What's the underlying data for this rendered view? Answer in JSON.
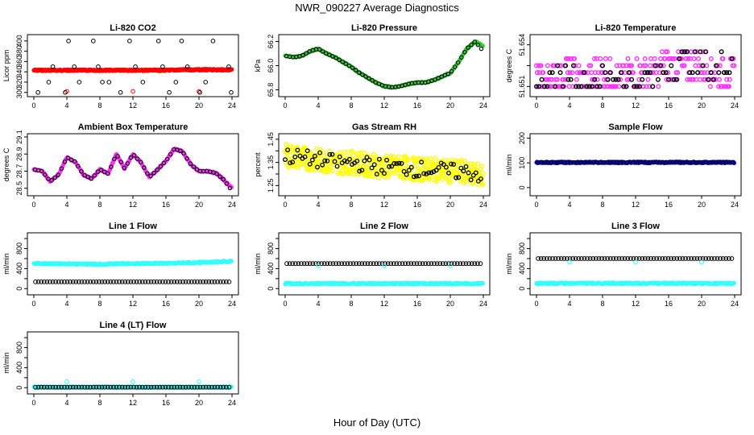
{
  "page": {
    "title": "NWR_090227  Average Diagnostics",
    "xlabel": "Hour of Day (UTC)"
  },
  "chart_data": [
    {
      "type": "scatter",
      "title": "Li-820 CO2",
      "ylabel": "Licor ppm",
      "xlim": [
        0,
        24
      ],
      "ylim": [
        298,
        406
      ],
      "xticks": [
        0,
        4,
        8,
        12,
        16,
        20,
        24
      ],
      "yticks": [
        300,
        320,
        340,
        360,
        380,
        400
      ],
      "series": [
        {
          "color": "#ff0000",
          "kind": "dense-band",
          "x": [
            0,
            2,
            4,
            6,
            8,
            10,
            12,
            14,
            16,
            18,
            20,
            22,
            24
          ],
          "values": [
            343,
            343,
            343,
            343,
            343,
            343,
            343,
            343,
            343,
            344,
            344,
            344,
            344
          ]
        },
        {
          "color": "#ff0000",
          "kind": "point",
          "x": [
            4,
            12,
            20
          ],
          "values": [
            302,
            302,
            302
          ]
        },
        {
          "color": "#000000",
          "kind": "sparse",
          "x": [
            0.5,
            1.8,
            2.3,
            3.8,
            4.2,
            4.9,
            5.5,
            7.2,
            7.8,
            8.3,
            9.1,
            10.5,
            11.6,
            12.3,
            13.2,
            15.1,
            15.6,
            16.4,
            17.2,
            17.9,
            18.6,
            20.1,
            20.8,
            21.7,
            23.6,
            23.9
          ],
          "values": [
            300,
            320,
            350,
            300,
            400,
            350,
            320,
            400,
            350,
            320,
            320,
            300,
            400,
            350,
            320,
            400,
            350,
            300,
            320,
            400,
            350,
            300,
            320,
            400,
            350,
            300
          ]
        }
      ]
    },
    {
      "type": "scatter",
      "title": "Li-820 Pressure",
      "ylabel": "kPa",
      "xlim": [
        0,
        24
      ],
      "ylim": [
        65.77,
        66.23
      ],
      "xticks": [
        0,
        4,
        8,
        12,
        16,
        20,
        24
      ],
      "yticks": [
        65.8,
        66.0,
        66.2
      ],
      "yticklabels": [
        "65.8",
        "66.0",
        "66.2"
      ],
      "series": [
        {
          "color": "#33cc33",
          "kind": "dense-line",
          "x": [
            0,
            1,
            2,
            3,
            4,
            5,
            6,
            7,
            8,
            9,
            10,
            11,
            12,
            13,
            14,
            15,
            16,
            17,
            18,
            19,
            20,
            21,
            22,
            23,
            24
          ],
          "values": [
            66.08,
            66.07,
            66.08,
            66.12,
            66.14,
            66.1,
            66.07,
            66.03,
            65.99,
            65.94,
            65.9,
            65.86,
            65.83,
            65.82,
            65.83,
            65.85,
            65.86,
            65.86,
            65.88,
            65.91,
            65.94,
            66.03,
            66.14,
            66.2,
            66.16
          ]
        },
        {
          "color": "#000000",
          "kind": "outline-overlay",
          "x": [
            0,
            1,
            2,
            3,
            4,
            5,
            6,
            7,
            8,
            9,
            10,
            11,
            12,
            13,
            14,
            15,
            16,
            17,
            18,
            19,
            20,
            21,
            22,
            23,
            24
          ],
          "values": [
            66.08,
            66.07,
            66.08,
            66.12,
            66.14,
            66.1,
            66.07,
            66.03,
            65.99,
            65.94,
            65.9,
            65.86,
            65.83,
            65.82,
            65.83,
            65.85,
            65.86,
            65.86,
            65.88,
            65.91,
            65.94,
            66.03,
            66.14,
            66.2,
            66.12
          ]
        }
      ]
    },
    {
      "type": "scatter",
      "title": "Li-820 Temperature",
      "ylabel": "degrees C",
      "xlim": [
        0,
        24
      ],
      "ylim": [
        51.6505,
        51.6545
      ],
      "xticks": [
        0,
        4,
        8,
        12,
        16,
        20,
        24
      ],
      "yticks": [
        51.651,
        51.6525,
        51.654
      ],
      "yticklabels": [
        "51.651",
        "",
        "51.654"
      ],
      "series": [
        {
          "color": "#ff33ff",
          "kind": "quantized",
          "levels": [
            51.651,
            51.6515,
            51.652,
            51.6525,
            51.653,
            51.6535,
            51.654
          ],
          "x": [
            0,
            2,
            4,
            6,
            8,
            10,
            12,
            14,
            16,
            18,
            20,
            22,
            24
          ],
          "values": [
            51.6515,
            51.6515,
            51.652,
            51.6515,
            51.652,
            51.6515,
            51.652,
            51.652,
            51.6525,
            51.6525,
            51.6525,
            51.652,
            51.652
          ]
        },
        {
          "color": "#000000",
          "kind": "quantized-sparse",
          "x": [
            0,
            2,
            4,
            6,
            8,
            10,
            12,
            14,
            16,
            18,
            20,
            22,
            24
          ],
          "values": [
            51.651,
            51.6515,
            51.652,
            51.651,
            51.6515,
            51.652,
            51.651,
            51.6515,
            51.6525,
            51.653,
            51.6525,
            51.652,
            51.6535
          ]
        }
      ]
    },
    {
      "type": "scatter",
      "title": "Ambient Box Temperature",
      "ylabel": "degrees C",
      "xlim": [
        0,
        24
      ],
      "ylim": [
        28.45,
        29.1
      ],
      "xticks": [
        0,
        4,
        8,
        12,
        16,
        20,
        24
      ],
      "yticks": [
        28.5,
        28.7,
        28.9,
        29.1
      ],
      "yticklabels": [
        "28.5",
        "28.7",
        "28.9",
        "29.1"
      ],
      "series": [
        {
          "color": "#ff33ff",
          "kind": "dense-line",
          "x": [
            0,
            1,
            2,
            3,
            4,
            5,
            6,
            7,
            8,
            9,
            10,
            11,
            12,
            13,
            14,
            15,
            16,
            17,
            18,
            19,
            20,
            21,
            22,
            23,
            24
          ],
          "values": [
            28.72,
            28.7,
            28.58,
            28.66,
            28.86,
            28.81,
            28.66,
            28.61,
            28.72,
            28.67,
            28.9,
            28.73,
            28.9,
            28.8,
            28.63,
            28.72,
            28.82,
            28.96,
            28.93,
            28.78,
            28.7,
            28.7,
            28.68,
            28.6,
            28.5
          ]
        },
        {
          "color": "#000000",
          "kind": "outline-overlay",
          "x": [
            0,
            1,
            2,
            3,
            4,
            5,
            6,
            7,
            8,
            9,
            10,
            11,
            12,
            13,
            14,
            15,
            16,
            17,
            18,
            19,
            20,
            21,
            22,
            23,
            24
          ],
          "values": [
            28.72,
            28.7,
            28.58,
            28.66,
            28.86,
            28.81,
            28.66,
            28.61,
            28.72,
            28.67,
            28.9,
            28.73,
            28.9,
            28.8,
            28.63,
            28.72,
            28.82,
            28.96,
            28.93,
            28.78,
            28.7,
            28.7,
            28.68,
            28.6,
            28.47
          ]
        }
      ]
    },
    {
      "type": "scatter",
      "title": "Gas Stream RH",
      "ylabel": "percent",
      "xlim": [
        0,
        24
      ],
      "ylim": [
        1.22,
        1.46
      ],
      "xticks": [
        0,
        4,
        8,
        12,
        16,
        20,
        24
      ],
      "yticks": [
        1.25,
        1.3,
        1.35,
        1.4,
        1.45
      ],
      "yticklabels": [
        "1.25",
        "",
        "1.35",
        "",
        "1.45"
      ],
      "series": [
        {
          "color": "#ffff00",
          "kind": "noisy-band",
          "x": [
            0,
            2,
            4,
            6,
            8,
            10,
            12,
            14,
            16,
            18,
            20,
            22,
            24
          ],
          "values": [
            1.38,
            1.37,
            1.36,
            1.35,
            1.35,
            1.34,
            1.33,
            1.33,
            1.32,
            1.32,
            1.31,
            1.31,
            1.29
          ],
          "spread": 0.05
        },
        {
          "color": "#000000",
          "kind": "noisy-sparse",
          "x": [
            0,
            2,
            4,
            6,
            8,
            10,
            12,
            14,
            16,
            18,
            20,
            22,
            24
          ],
          "values": [
            1.38,
            1.37,
            1.36,
            1.35,
            1.35,
            1.34,
            1.33,
            1.33,
            1.32,
            1.32,
            1.31,
            1.31,
            1.29
          ],
          "spread": 0.035
        }
      ]
    },
    {
      "type": "scatter",
      "title": "Sample Flow",
      "ylabel": "ml/min",
      "xlim": [
        0,
        24
      ],
      "ylim": [
        -20,
        205
      ],
      "xticks": [
        0,
        4,
        8,
        12,
        16,
        20,
        24
      ],
      "yticks": [
        0,
        100,
        200
      ],
      "series": [
        {
          "color": "#0000cc",
          "kind": "dense-line",
          "x": [
            0,
            24
          ],
          "values": [
            102,
            102
          ]
        },
        {
          "color": "#000000",
          "kind": "outline-overlay",
          "x": [
            0,
            24
          ],
          "values": [
            102,
            102
          ]
        }
      ]
    },
    {
      "type": "scatter",
      "title": "Line 1 Flow",
      "ylabel": "ml/min",
      "xlim": [
        0,
        24
      ],
      "ylim": [
        -60,
        1050
      ],
      "xticks": [
        0,
        4,
        8,
        12,
        16,
        20,
        24
      ],
      "yticks": [
        0,
        200,
        400,
        600,
        800,
        1000
      ],
      "yticklabels": [
        "0",
        "",
        "400",
        "",
        "800",
        ""
      ],
      "series": [
        {
          "color": "#33ffff",
          "kind": "dense-line",
          "x": [
            0,
            4,
            8,
            12,
            16,
            20,
            24
          ],
          "values": [
            500,
            495,
            490,
            500,
            505,
            520,
            545
          ]
        },
        {
          "color": "#000000",
          "kind": "open-circles",
          "x": [
            0,
            24
          ],
          "values": [
            135,
            135
          ]
        }
      ]
    },
    {
      "type": "scatter",
      "title": "Line 2 Flow",
      "ylabel": "ml/min",
      "xlim": [
        0,
        24
      ],
      "ylim": [
        -60,
        1050
      ],
      "xticks": [
        0,
        4,
        8,
        12,
        16,
        20,
        24
      ],
      "yticks": [
        0,
        200,
        400,
        600,
        800,
        1000
      ],
      "yticklabels": [
        "0",
        "",
        "400",
        "",
        "800",
        ""
      ],
      "series": [
        {
          "color": "#33ffff",
          "kind": "dense-line",
          "x": [
            0,
            24
          ],
          "values": [
            100,
            100
          ]
        },
        {
          "color": "#000000",
          "kind": "open-circles",
          "x": [
            0,
            24
          ],
          "values": [
            500,
            500
          ]
        },
        {
          "color": "#33ffff",
          "kind": "point",
          "x": [
            4,
            12,
            20
          ],
          "values": [
            455,
            455,
            455
          ]
        }
      ]
    },
    {
      "type": "scatter",
      "title": "Line 3 Flow",
      "ylabel": "ml/min",
      "xlim": [
        0,
        24
      ],
      "ylim": [
        -60,
        1050
      ],
      "xticks": [
        0,
        4,
        8,
        12,
        16,
        20,
        24
      ],
      "yticks": [
        0,
        200,
        400,
        600,
        800,
        1000
      ],
      "yticklabels": [
        "0",
        "",
        "400",
        "",
        "800",
        ""
      ],
      "series": [
        {
          "color": "#33ffff",
          "kind": "dense-line",
          "x": [
            0,
            24
          ],
          "values": [
            105,
            105
          ]
        },
        {
          "color": "#000000",
          "kind": "open-circles",
          "x": [
            0,
            24
          ],
          "values": [
            600,
            600
          ]
        },
        {
          "color": "#33ffff",
          "kind": "point",
          "x": [
            4,
            12,
            20
          ],
          "values": [
            525,
            525,
            525
          ]
        }
      ]
    },
    {
      "type": "scatter",
      "title": "Line 4 (LT) Flow",
      "ylabel": "ml/min",
      "xlim": [
        0,
        24
      ],
      "ylim": [
        -60,
        1050
      ],
      "xticks": [
        0,
        4,
        8,
        12,
        16,
        20,
        24
      ],
      "yticks": [
        0,
        200,
        400,
        600,
        800,
        1000
      ],
      "yticklabels": [
        "0",
        "",
        "400",
        "",
        "800",
        ""
      ],
      "series": [
        {
          "color": "#33ffff",
          "kind": "dense-line",
          "x": [
            0,
            24
          ],
          "values": [
            10,
            10
          ]
        },
        {
          "color": "#000000",
          "kind": "open-circles",
          "x": [
            0,
            24
          ],
          "values": [
            10,
            10
          ]
        },
        {
          "color": "#33ffff",
          "kind": "point",
          "x": [
            4,
            12,
            20
          ],
          "values": [
            120,
            120,
            120
          ]
        }
      ]
    }
  ]
}
